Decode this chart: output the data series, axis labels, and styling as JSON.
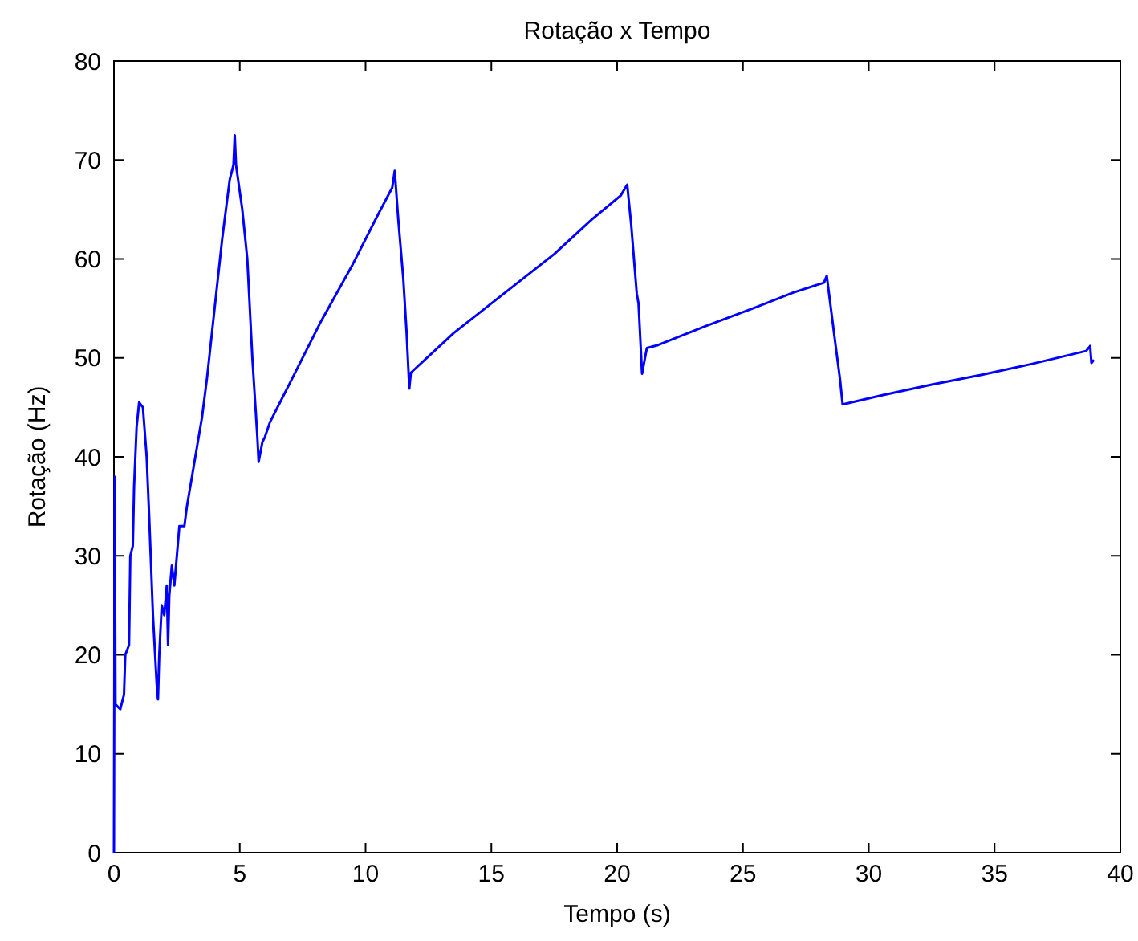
{
  "chart_data": {
    "type": "line",
    "title": "Rotação x Tempo",
    "xlabel": "Tempo (s)",
    "ylabel": "Rotação (Hz)",
    "xlim": [
      0,
      40
    ],
    "ylim": [
      0,
      80
    ],
    "xticks": [
      0,
      5,
      10,
      15,
      20,
      25,
      30,
      35,
      40
    ],
    "yticks": [
      0,
      10,
      20,
      30,
      40,
      50,
      60,
      70,
      80
    ],
    "grid": false,
    "marker": "none",
    "line_style": "solid",
    "series": [
      {
        "color": "#0000ff",
        "x": [
          0,
          0.03,
          0.06,
          0.25,
          0.4,
          0.45,
          0.6,
          0.65,
          0.75,
          0.8,
          0.9,
          1.0,
          1.15,
          1.3,
          1.4,
          1.55,
          1.7,
          1.75,
          1.8,
          1.9,
          2.0,
          2.1,
          2.15,
          2.2,
          2.3,
          2.4,
          2.5,
          2.6,
          2.8,
          2.9,
          3.1,
          3.3,
          3.5,
          3.7,
          4.0,
          4.3,
          4.6,
          4.75,
          4.8,
          4.85,
          5.1,
          5.3,
          5.5,
          5.7,
          5.75,
          5.9,
          6.0,
          6.2,
          7.0,
          8.23,
          9.5,
          10.5,
          11.06,
          11.16,
          11.3,
          11.5,
          11.63,
          11.74,
          11.8,
          13.5,
          15.5,
          17.5,
          19.0,
          20.14,
          20.4,
          20.56,
          20.78,
          20.85,
          20.99,
          21.18,
          21.63,
          23.5,
          25.5,
          27.0,
          28.22,
          28.33,
          28.64,
          28.86,
          28.96,
          30.5,
          32.5,
          34.5,
          36.5,
          38.64,
          38.8,
          38.85,
          38.95
        ],
        "values": [
          0,
          38,
          15,
          14.5,
          16,
          20,
          21,
          30,
          31,
          37,
          43,
          45.5,
          45,
          40,
          34,
          24,
          17,
          15.5,
          20,
          25,
          24,
          27,
          21,
          26,
          29,
          27,
          30,
          33,
          33,
          35,
          38,
          41,
          44,
          48,
          55,
          62,
          68,
          69.5,
          72.5,
          69.5,
          65,
          60,
          50,
          42,
          39.5,
          41.5,
          42,
          43.5,
          47.5,
          53.7,
          59.5,
          64.5,
          67.2,
          68.9,
          64,
          58,
          52.6,
          46.9,
          48.5,
          52.5,
          56.5,
          60.5,
          64,
          66.4,
          67.5,
          63.4,
          56.5,
          55.5,
          48.4,
          51,
          51.3,
          53.2,
          55.1,
          56.6,
          57.6,
          58.3,
          52.1,
          47.8,
          45.3,
          46.2,
          47.3,
          48.3,
          49.4,
          50.7,
          51.2,
          49.5,
          49.8
        ]
      }
    ]
  }
}
